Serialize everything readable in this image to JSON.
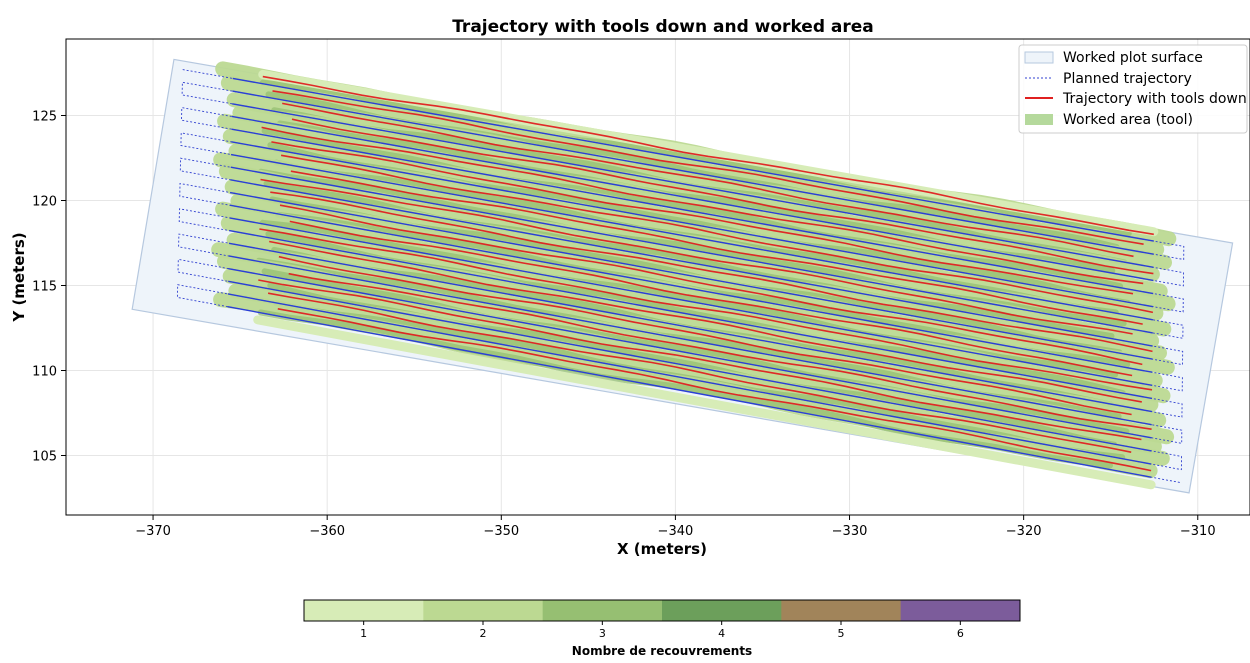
{
  "chart_data": {
    "type": "line",
    "title": "Trajectory with tools down and worked area",
    "xlabel": "X (meters)",
    "ylabel": "Y (meters)",
    "xlim": [
      -375,
      -307
    ],
    "ylim": [
      101.5,
      129.5
    ],
    "xticks": [
      -370,
      -360,
      -350,
      -340,
      -330,
      -320,
      -310
    ],
    "yticks": [
      105,
      110,
      115,
      120,
      125
    ],
    "grid": true,
    "legend_position": "top-right",
    "legend": [
      {
        "label": "Worked plot surface",
        "kind": "patch",
        "color": "#e3eef8"
      },
      {
        "label": "Planned trajectory",
        "kind": "dotted-line",
        "color": "#3040d0"
      },
      {
        "label": "Trajectory with tools down",
        "kind": "line",
        "color": "#e02020"
      },
      {
        "label": "Worked area (tool)",
        "kind": "patch",
        "color": "#b5d99c"
      }
    ],
    "plot_surface": [
      [
        -371.2,
        113.6
      ],
      [
        -368.8,
        128.3
      ],
      [
        -308.0,
        117.5
      ],
      [
        -310.5,
        102.8
      ]
    ],
    "rows": {
      "count": 19,
      "left_x": -368.3,
      "left_y_top": 127.7,
      "left_y_bottom": 114.3,
      "right_x": -310.8,
      "right_y_top": 117.3,
      "right_y_bottom": 103.4
    },
    "colorbar": {
      "label": "Nombre de recouvrements",
      "ticks": [
        "1",
        "2",
        "3",
        "4",
        "5",
        "6"
      ],
      "colors": [
        "#d7ecb7",
        "#bcd992",
        "#96bf72",
        "#6c9f5b",
        "#a1845a",
        "#7c5c9b"
      ]
    }
  }
}
